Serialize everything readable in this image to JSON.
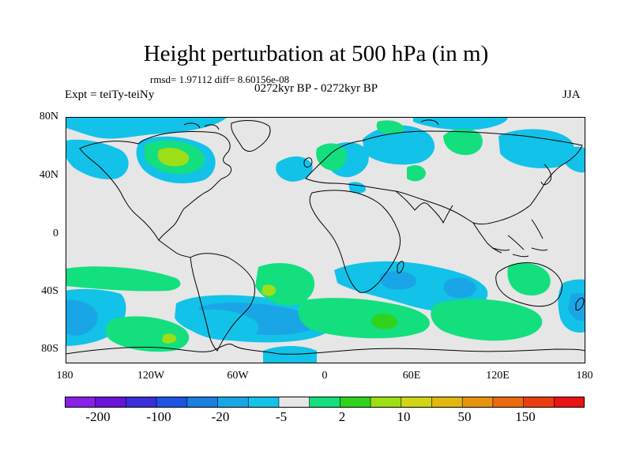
{
  "title": "Height perturbation at 500 hPa (in m)",
  "rmsd_text": "rmsd= 1.97112 diff= 8.60156e-08",
  "period_text": "0272kyr BP - 0272kyr BP",
  "expt_text": "Expt = teiTy-teiNy",
  "season": "JJA",
  "lat_labels": [
    "80N",
    "40N",
    "0",
    "40S",
    "80S"
  ],
  "lon_labels": [
    "180",
    "120W",
    "60W",
    "0",
    "60E",
    "120E",
    "180"
  ],
  "colorbar": {
    "labels": [
      "-200",
      "-100",
      "-20",
      "-5",
      "2",
      "10",
      "50",
      "150"
    ],
    "colors": [
      "#8a1fe6",
      "#6a14d8",
      "#3a2fd8",
      "#1d55e0",
      "#1b7fe0",
      "#1aa6e6",
      "#12c2e8",
      "#e6e6e6",
      "#13df7f",
      "#2fd31c",
      "#9ede16",
      "#d2d416",
      "#e2b80f",
      "#e69410",
      "#ea6a10",
      "#ec3d12",
      "#ea1414"
    ]
  },
  "map_colors": {
    "background": "#e6e6e6",
    "light_blue": "#12c2e8",
    "mid_blue": "#1aa6e6",
    "light_green": "#13df7f",
    "green": "#2fd31c",
    "yellow_green": "#9ede16",
    "coast": "#000000"
  }
}
